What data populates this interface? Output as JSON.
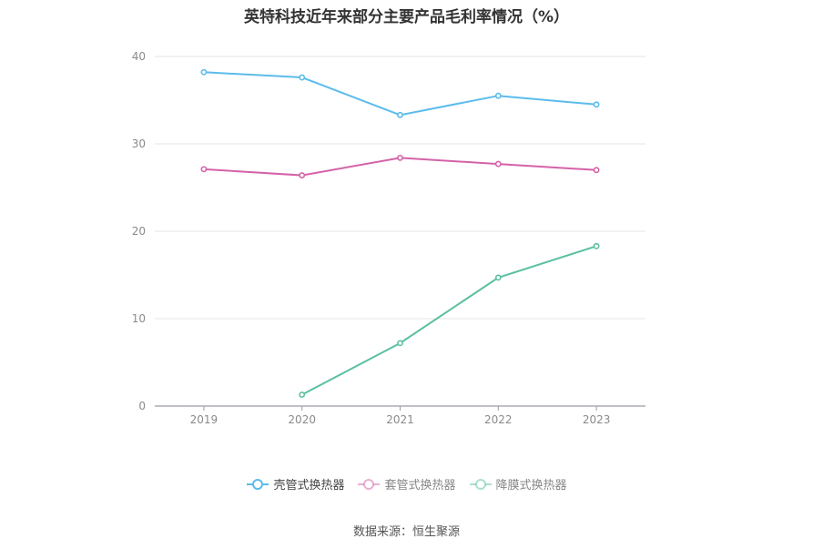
{
  "title": "英特科技近年来部分主要产品毛利率情况（%）",
  "source": "数据来源：恒生聚源",
  "chart_data": {
    "type": "line",
    "categories": [
      "2019",
      "2020",
      "2021",
      "2022",
      "2023"
    ],
    "series": [
      {
        "name": "壳管式换热器",
        "color": "#5bbcec",
        "values": [
          38.2,
          37.6,
          33.3,
          35.5,
          34.5
        ]
      },
      {
        "name": "套管式换热器",
        "color": "#d462a8",
        "values": [
          27.1,
          26.4,
          28.4,
          27.7,
          27.0
        ]
      },
      {
        "name": "降膜式换热器",
        "color": "#5bbfa2",
        "values": [
          null,
          1.3,
          7.2,
          14.7,
          18.3
        ]
      }
    ],
    "ylim": [
      0,
      40
    ],
    "yticks": [
      0,
      10,
      20,
      30,
      40
    ],
    "grid": true,
    "legend_position": "bottom"
  }
}
